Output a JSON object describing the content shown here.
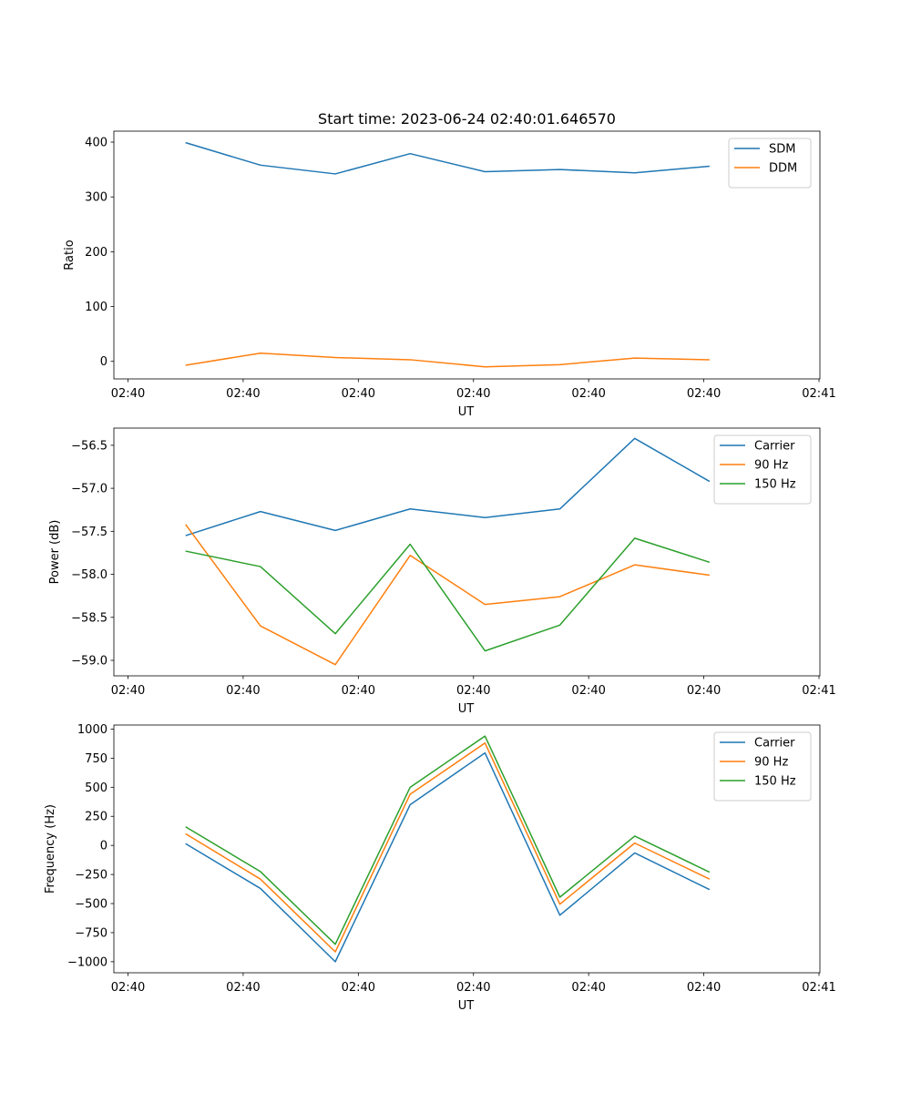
{
  "figure": {
    "title": "Start time: 2023-06-24 02:40:01.646570"
  },
  "chart_data": [
    {
      "type": "line",
      "xlabel": "UT",
      "ylabel": "Ratio",
      "xlim": [
        0,
        6.1
      ],
      "ylim": [
        -32,
        420
      ],
      "x_ticks": [
        {
          "x": 0,
          "label": "02:40"
        },
        {
          "x": 1,
          "label": "02:40"
        },
        {
          "x": 2,
          "label": "02:40"
        },
        {
          "x": 3,
          "label": "02:40"
        },
        {
          "x": 4,
          "label": "02:40"
        },
        {
          "x": 5,
          "label": "02:40"
        },
        {
          "x": 6,
          "label": "02:41"
        }
      ],
      "y_ticks": [
        0,
        100,
        200,
        300,
        400
      ],
      "y_tick_labels": [
        "0",
        "100",
        "200",
        "300",
        "400"
      ],
      "x": [
        0.5,
        1.15,
        1.8,
        2.45,
        3.1,
        3.75,
        4.4,
        5.05
      ],
      "legend_position": "top-right",
      "series": [
        {
          "name": "SDM",
          "color": "#1f77b4",
          "values": [
            399,
            358,
            342,
            379,
            346,
            350,
            344,
            356
          ]
        },
        {
          "name": "DDM",
          "color": "#ff7f0e",
          "values": [
            -7,
            15,
            7,
            3,
            -10,
            -6,
            6,
            3
          ]
        }
      ]
    },
    {
      "type": "line",
      "xlabel": "UT",
      "ylabel": "Power (dB)",
      "xlim": [
        0,
        6.1
      ],
      "ylim": [
        -59.18,
        -56.3
      ],
      "x_ticks": [
        {
          "x": 0,
          "label": "02:40"
        },
        {
          "x": 1,
          "label": "02:40"
        },
        {
          "x": 2,
          "label": "02:40"
        },
        {
          "x": 3,
          "label": "02:40"
        },
        {
          "x": 4,
          "label": "02:40"
        },
        {
          "x": 5,
          "label": "02:40"
        },
        {
          "x": 6,
          "label": "02:41"
        }
      ],
      "y_ticks": [
        -59.0,
        -58.5,
        -58.0,
        -57.5,
        -57.0,
        -56.5
      ],
      "y_tick_labels": [
        "−59.0",
        "−58.5",
        "−58.0",
        "−57.5",
        "−57.0",
        "−56.5"
      ],
      "x": [
        0.5,
        1.15,
        1.8,
        2.45,
        3.1,
        3.75,
        4.4,
        5.05
      ],
      "legend_position": "top-right",
      "series": [
        {
          "name": "Carrier",
          "color": "#1f77b4",
          "values": [
            -57.55,
            -57.27,
            -57.49,
            -57.24,
            -57.34,
            -57.24,
            -56.42,
            -56.92
          ]
        },
        {
          "name": "90 Hz",
          "color": "#ff7f0e",
          "values": [
            -57.42,
            -58.6,
            -59.05,
            -57.78,
            -58.35,
            -58.26,
            -57.89,
            -58.01
          ]
        },
        {
          "name": "150 Hz",
          "color": "#2ca02c",
          "values": [
            -57.73,
            -57.91,
            -58.69,
            -57.65,
            -58.89,
            -58.59,
            -57.58,
            -57.86
          ]
        }
      ]
    },
    {
      "type": "line",
      "xlabel": "UT",
      "ylabel": "Frequency (Hz)",
      "xlim": [
        0,
        6.1
      ],
      "ylim": [
        -1095,
        1035
      ],
      "x_ticks": [
        {
          "x": 0,
          "label": "02:40"
        },
        {
          "x": 1,
          "label": "02:40"
        },
        {
          "x": 2,
          "label": "02:40"
        },
        {
          "x": 3,
          "label": "02:40"
        },
        {
          "x": 4,
          "label": "02:40"
        },
        {
          "x": 5,
          "label": "02:40"
        },
        {
          "x": 6,
          "label": "02:41"
        }
      ],
      "y_ticks": [
        -1000,
        -750,
        -500,
        -250,
        0,
        250,
        500,
        750,
        1000
      ],
      "y_tick_labels": [
        "−1000",
        "−750",
        "−500",
        "−250",
        "0",
        "250",
        "500",
        "750",
        "1000"
      ],
      "x": [
        0.5,
        1.15,
        1.8,
        2.45,
        3.1,
        3.75,
        4.4,
        5.05
      ],
      "legend_position": "top-right",
      "series": [
        {
          "name": "Carrier",
          "color": "#1f77b4",
          "values": [
            15,
            -370,
            -1000,
            350,
            795,
            -600,
            -65,
            -380
          ]
        },
        {
          "name": "90 Hz",
          "color": "#ff7f0e",
          "values": [
            100,
            -290,
            -915,
            440,
            880,
            -505,
            20,
            -290
          ]
        },
        {
          "name": "150 Hz",
          "color": "#2ca02c",
          "values": [
            160,
            -225,
            -850,
            500,
            940,
            -445,
            80,
            -230
          ]
        }
      ]
    }
  ]
}
